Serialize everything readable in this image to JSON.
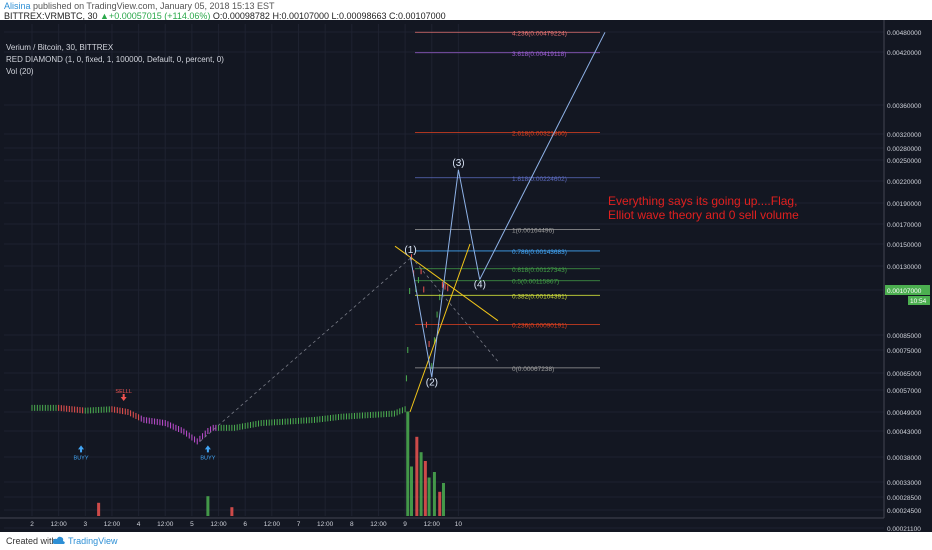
{
  "header": {
    "author": "Alisina",
    "published": "published on TradingView.com, January 05, 2018 15:13 EST",
    "symbol_line": "BITTREX:VRMBTC, 30",
    "change": "+0.00057015 (+114.06%)",
    "ohlc": "O:0.00098782 H:0.00107000 L:0.00098663 C:0.00107000"
  },
  "legend": {
    "line1": "Verium / Bitcoin, 30, BITTREX",
    "line2": "RED DIAMOND (1, 0, fixed, 1, 100000, Default, 0, percent, 0)",
    "line3": "Vol (20)"
  },
  "annotation": {
    "line1": "Everything says its going up....Flag,",
    "line2": "Elliot wave theory and 0 sell volume",
    "color": "#e0201f"
  },
  "footer": {
    "created": "Created with",
    "brand": "TradingView"
  },
  "colors": {
    "background": "#131722",
    "up": "#26a69a",
    "up_bar": "#4caf50",
    "down_bar": "#ef5350",
    "purple": "#c24fd4",
    "grid": "#1e2230",
    "axis_text": "#d1d4dc",
    "price_tag": "#4caf50"
  },
  "chart_data": {
    "type": "candlestick",
    "symbol": "BITTREX:VRMBTC",
    "timeframe": "30",
    "y_axis": {
      "ylim": [
        0.000185,
        0.00484
      ],
      "ticks": [
        "0.00480000",
        "0.00420000",
        "0.00360000",
        "0.00320000",
        "0.00280000",
        "0.00250000",
        "0.00220000",
        "0.00190000",
        "0.00170000",
        "0.00150000",
        "0.00130000",
        "0.00107000",
        "0.00085000",
        "0.00075000",
        "0.00065000",
        "0.00057000",
        "0.00049000",
        "0.00043000",
        "0.00038000",
        "0.00033000",
        "0.00028500",
        "0.00024500",
        "0.00021100"
      ],
      "tick_values": [
        0.0048,
        0.0042,
        0.0036,
        0.0032,
        0.0028,
        0.0025,
        0.0022,
        0.0019,
        0.0017,
        0.0015,
        0.0013,
        0.00107,
        0.00085,
        0.00075,
        0.00065,
        0.00057,
        0.00049,
        0.00043,
        0.00038,
        0.00033,
        0.000285,
        0.000245,
        0.000211
      ],
      "last_price": "0.00107000",
      "countdown": "10:54"
    },
    "x_axis": {
      "ticks": [
        {
          "label": "2",
          "i": 0
        },
        {
          "label": "12:00",
          "i": 1
        },
        {
          "label": "3",
          "i": 2
        },
        {
          "label": "12:00",
          "i": 3
        },
        {
          "label": "4",
          "i": 4
        },
        {
          "label": "12:00",
          "i": 5
        },
        {
          "label": "5",
          "i": 6
        },
        {
          "label": "12:00",
          "i": 7
        },
        {
          "label": "6",
          "i": 8
        },
        {
          "label": "12:00",
          "i": 9
        },
        {
          "label": "7",
          "i": 10
        },
        {
          "label": "12:00",
          "i": 11
        },
        {
          "label": "8",
          "i": 12
        },
        {
          "label": "12:00",
          "i": 13
        },
        {
          "label": "9",
          "i": 14
        },
        {
          "label": "12:00",
          "i": 15
        },
        {
          "label": "10",
          "i": 16
        }
      ]
    },
    "fibonacci": [
      {
        "ratio": "4.236",
        "value": "0.00479224",
        "price": 0.00479224,
        "color": "#e57373"
      },
      {
        "ratio": "3.618",
        "value": "0.00419118",
        "price": 0.00419118,
        "color": "#9c5fd4"
      },
      {
        "ratio": "2.618",
        "value": "0.00321860",
        "price": 0.0032186,
        "color": "#e0401f"
      },
      {
        "ratio": "1.618",
        "value": "0.00224602",
        "price": 0.00224602,
        "color": "#5c6bc0"
      },
      {
        "ratio": "1",
        "value": "0.00164496",
        "price": 0.00164496,
        "color": "#9e9e9e"
      },
      {
        "ratio": "0.786",
        "value": "0.00143683",
        "price": 0.00143683,
        "color": "#42a5f5"
      },
      {
        "ratio": "0.618",
        "value": "0.00127343",
        "price": 0.00127343,
        "color": "#43a047"
      },
      {
        "ratio": "0.5",
        "value": "0.00115867",
        "price": 0.00115867,
        "color": "#43a047"
      },
      {
        "ratio": "0.382",
        "value": "0.00104391",
        "price": 0.00104391,
        "color": "#cddc39"
      },
      {
        "ratio": "0.236",
        "value": "0.00090191",
        "price": 0.00090191,
        "color": "#e0401f"
      },
      {
        "ratio": "0",
        "value": "0.00067238",
        "price": 0.00067238,
        "color": "#9e9e9e"
      }
    ],
    "waves": [
      {
        "label": "(1)",
        "day": 7.1,
        "price": 0.00138
      },
      {
        "label": "(2)",
        "day": 7.5,
        "price": 0.00063
      },
      {
        "label": "(3)",
        "day": 8.0,
        "price": 0.00236
      },
      {
        "label": "(4)",
        "day": 8.4,
        "price": 0.00117
      }
    ],
    "signals": [
      {
        "label": "BUYY",
        "day": 0.92,
        "type": "buy"
      },
      {
        "label": "SELLL",
        "day": 1.72,
        "type": "sell"
      },
      {
        "label": "BUYY",
        "day": 3.3,
        "type": "buy"
      }
    ],
    "price_path": [
      [
        0,
        0.000505
      ],
      [
        0.5,
        0.000505
      ],
      [
        1.0,
        0.000495
      ],
      [
        1.5,
        0.0005
      ],
      [
        1.8,
        0.00049
      ],
      [
        2.1,
        0.000465
      ],
      [
        2.5,
        0.000455
      ],
      [
        2.9,
        0.000425
      ],
      [
        3.1,
        0.00041
      ],
      [
        3.4,
        0.00044
      ],
      [
        3.8,
        0.00044
      ],
      [
        4.3,
        0.000455
      ],
      [
        4.8,
        0.00046
      ],
      [
        5.3,
        0.000465
      ],
      [
        5.8,
        0.000475
      ],
      [
        6.3,
        0.00048
      ],
      [
        6.8,
        0.000485
      ],
      [
        7.0,
        0.0005
      ],
      [
        7.05,
        0.00075
      ],
      [
        7.12,
        0.00138
      ],
      [
        7.2,
        0.00108
      ],
      [
        7.3,
        0.00125
      ],
      [
        7.4,
        0.0009
      ],
      [
        7.5,
        0.00068
      ],
      [
        7.6,
        0.00095
      ],
      [
        7.7,
        0.00112
      ],
      [
        7.85,
        0.00107
      ]
    ],
    "volume": [
      {
        "day": 1.25,
        "v": 0.12,
        "up": false
      },
      {
        "day": 3.3,
        "v": 0.18,
        "up": true
      },
      {
        "day": 3.75,
        "v": 0.08,
        "up": false
      },
      {
        "day": 7.05,
        "v": 0.95,
        "up": true
      },
      {
        "day": 7.12,
        "v": 0.45,
        "up": true
      },
      {
        "day": 7.22,
        "v": 0.72,
        "up": false
      },
      {
        "day": 7.3,
        "v": 0.58,
        "up": true
      },
      {
        "day": 7.38,
        "v": 0.5,
        "up": false
      },
      {
        "day": 7.45,
        "v": 0.35,
        "up": true
      },
      {
        "day": 7.55,
        "v": 0.4,
        "up": true
      },
      {
        "day": 7.65,
        "v": 0.22,
        "up": false
      },
      {
        "day": 7.72,
        "v": 0.3,
        "up": true
      }
    ]
  }
}
